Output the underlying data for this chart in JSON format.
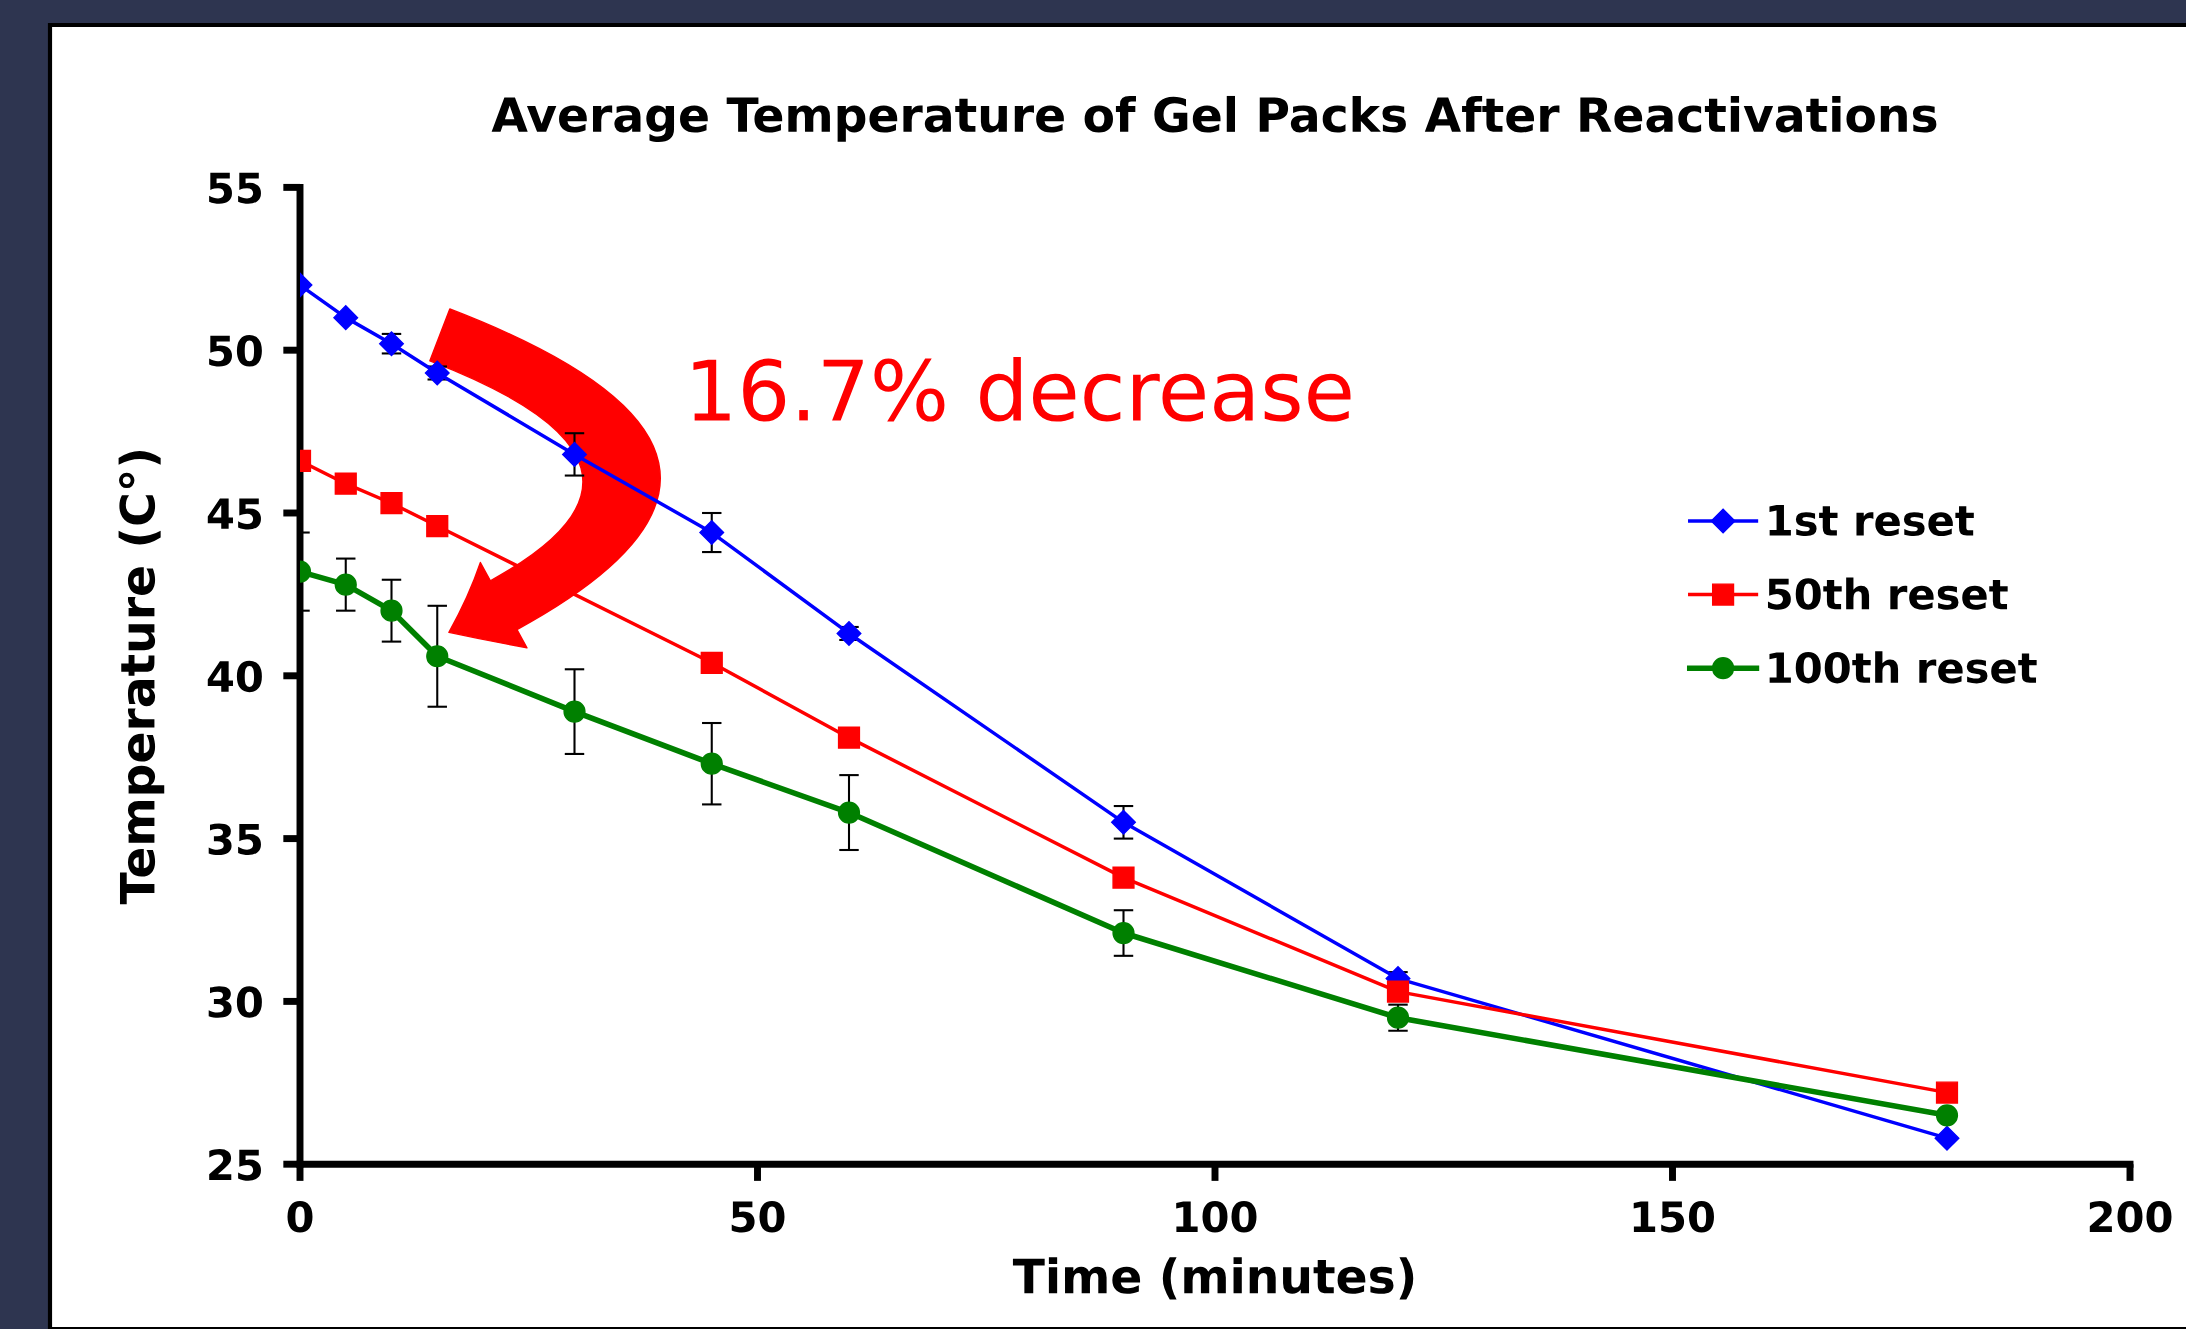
{
  "chart_data": {
    "type": "line",
    "title": "Average Temperature of Gel Packs After Reactivations",
    "xlabel": "Time (minutes)",
    "ylabel": "Temperature (C°)",
    "x": [
      0,
      5,
      10,
      15,
      30,
      45,
      60,
      90,
      120,
      180
    ],
    "series": [
      {
        "name": "1st reset",
        "color": "#0000ff",
        "marker": "diamond",
        "values": [
          52.0,
          51.0,
          50.2,
          49.3,
          46.8,
          44.4,
          41.3,
          35.5,
          30.7,
          25.8
        ],
        "errors": [
          null,
          null,
          0.3,
          0.2,
          0.65,
          0.6,
          0.2,
          0.5,
          0.2,
          null
        ]
      },
      {
        "name": "50th reset",
        "color": "#ff0000",
        "marker": "square",
        "values": [
          46.6,
          45.9,
          45.3,
          44.6,
          null,
          40.4,
          38.1,
          33.8,
          30.3,
          27.2
        ]
      },
      {
        "name": "100th reset",
        "color": "#008000",
        "marker": "circle",
        "values": [
          43.2,
          42.8,
          42.0,
          40.6,
          38.9,
          37.3,
          35.8,
          32.1,
          29.5,
          26.5
        ],
        "errors": [
          1.2,
          0.8,
          0.95,
          1.55,
          1.3,
          1.25,
          1.15,
          0.7,
          0.4,
          null
        ]
      }
    ],
    "xlim": [
      0,
      200
    ],
    "xticks": [
      0,
      50,
      100,
      150,
      200
    ],
    "ylim": [
      25,
      55
    ],
    "yticks": [
      25,
      30,
      35,
      40,
      45,
      50,
      55
    ],
    "grid": false,
    "legend": "right",
    "annotations": [
      "16.7% decrease"
    ]
  }
}
